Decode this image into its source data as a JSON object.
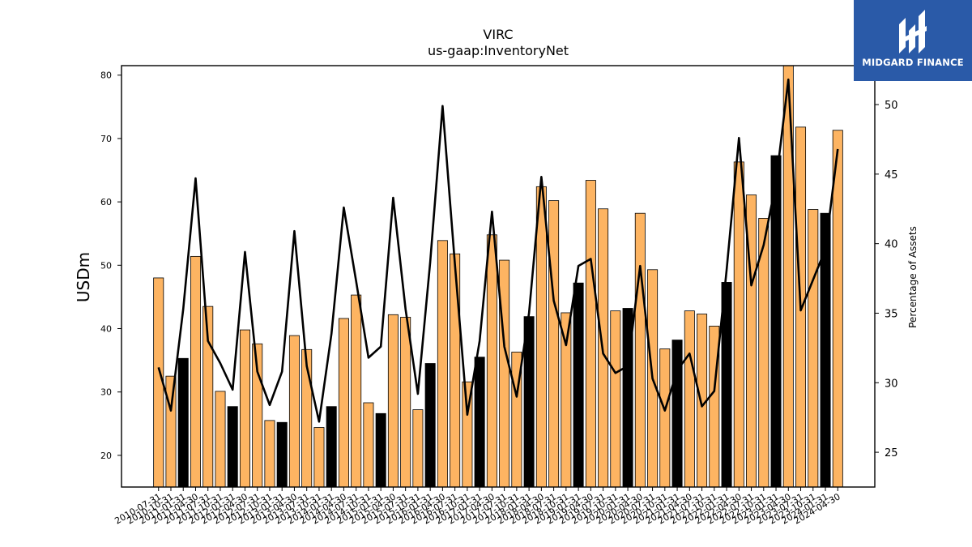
{
  "logo": {
    "text": "MIDGARD FINANCE",
    "background": "#2a5aa8"
  },
  "chart_data": {
    "type": "bar",
    "title": "VIRC",
    "subtitle": "us-gaap:InventoryNet",
    "ylabel": "USDm",
    "y2label": "Percentage of Assets",
    "ylim": [
      15,
      81.5
    ],
    "y2lim": [
      22.5,
      52.8
    ],
    "yticks": [
      20,
      30,
      40,
      50,
      60,
      70,
      80
    ],
    "y2ticks": [
      25,
      30,
      35,
      40,
      45,
      50
    ],
    "grid": false,
    "colors": {
      "bar": "#fdb462",
      "bar_highlight": "#000000",
      "line": "#000000"
    },
    "categories": [
      "2010-07-31",
      "2010-10-31",
      "2011-01-31",
      "2011-04-30",
      "2011-07-31",
      "2011-10-31",
      "2012-01-31",
      "2012-04-30",
      "2012-07-31",
      "2012-10-31",
      "2013-01-31",
      "2013-04-30",
      "2013-07-31",
      "2013-10-31",
      "2014-01-31",
      "2014-04-30",
      "2014-07-31",
      "2014-10-31",
      "2015-01-31",
      "2015-04-30",
      "2015-07-31",
      "2015-10-31",
      "2016-01-31",
      "2016-04-30",
      "2016-07-31",
      "2016-10-31",
      "2017-01-31",
      "2017-04-30",
      "2017-07-31",
      "2017-10-31",
      "2018-01-31",
      "2018-04-30",
      "2018-07-31",
      "2018-10-31",
      "2019-01-31",
      "2019-04-30",
      "2019-07-31",
      "2019-10-31",
      "2020-01-31",
      "2020-04-30",
      "2020-07-31",
      "2020-10-31",
      "2021-01-31",
      "2021-04-30",
      "2021-07-31",
      "2021-10-31",
      "2022-01-31",
      "2022-04-30",
      "2022-07-31",
      "2022-10-31",
      "2023-01-31",
      "2023-04-30",
      "2023-07-31",
      "2023-10-31",
      "2024-01-31",
      "2024-04-30"
    ],
    "series": [
      {
        "type": "bar",
        "values": [
          48,
          32.5,
          35.3,
          51.4,
          43.5,
          30.1,
          27.7,
          39.8,
          37.6,
          25.5,
          25.2,
          38.9,
          36.7,
          24.4,
          27.7,
          41.6,
          45.3,
          28.3,
          26.6,
          42.2,
          41.8,
          27.2,
          34.5,
          53.9,
          51.8,
          31.6,
          35.5,
          54.8,
          50.8,
          36.3,
          41.9,
          62.4,
          60.2,
          42.5,
          47.2,
          63.4,
          58.9,
          42.8,
          43.2,
          58.2,
          49.3,
          36.8,
          38.2,
          42.8,
          42.3,
          40.4,
          47.3,
          66.3,
          61.1,
          57.4,
          67.3,
          81.5,
          71.8,
          58.8,
          58.2,
          71.3
        ],
        "highlight": [
          false,
          false,
          true,
          false,
          false,
          false,
          true,
          false,
          false,
          false,
          true,
          false,
          false,
          false,
          true,
          false,
          false,
          false,
          true,
          false,
          false,
          false,
          true,
          false,
          false,
          false,
          true,
          false,
          false,
          false,
          true,
          false,
          false,
          false,
          true,
          false,
          false,
          false,
          true,
          false,
          false,
          false,
          true,
          false,
          false,
          false,
          true,
          false,
          false,
          false,
          true,
          false,
          false,
          false,
          true,
          false
        ]
      },
      {
        "type": "line",
        "axis": "right",
        "values": [
          31.1,
          28.0,
          35.3,
          44.7,
          33.0,
          31.4,
          29.5,
          39.4,
          30.8,
          28.4,
          30.8,
          40.9,
          31.2,
          27.2,
          33.5,
          42.6,
          37.3,
          31.8,
          32.6,
          43.3,
          35.3,
          29.2,
          38.7,
          49.9,
          38.5,
          27.7,
          33.0,
          42.3,
          32.6,
          29.0,
          35.0,
          44.8,
          35.9,
          32.7,
          38.4,
          38.9,
          32.1,
          30.7,
          31.2,
          38.4,
          30.3,
          28.0,
          30.9,
          32.1,
          28.3,
          29.4,
          38.1,
          47.6,
          37.0,
          39.9,
          44.4,
          51.8,
          35.2,
          37.4,
          39.6,
          46.8
        ]
      }
    ]
  }
}
